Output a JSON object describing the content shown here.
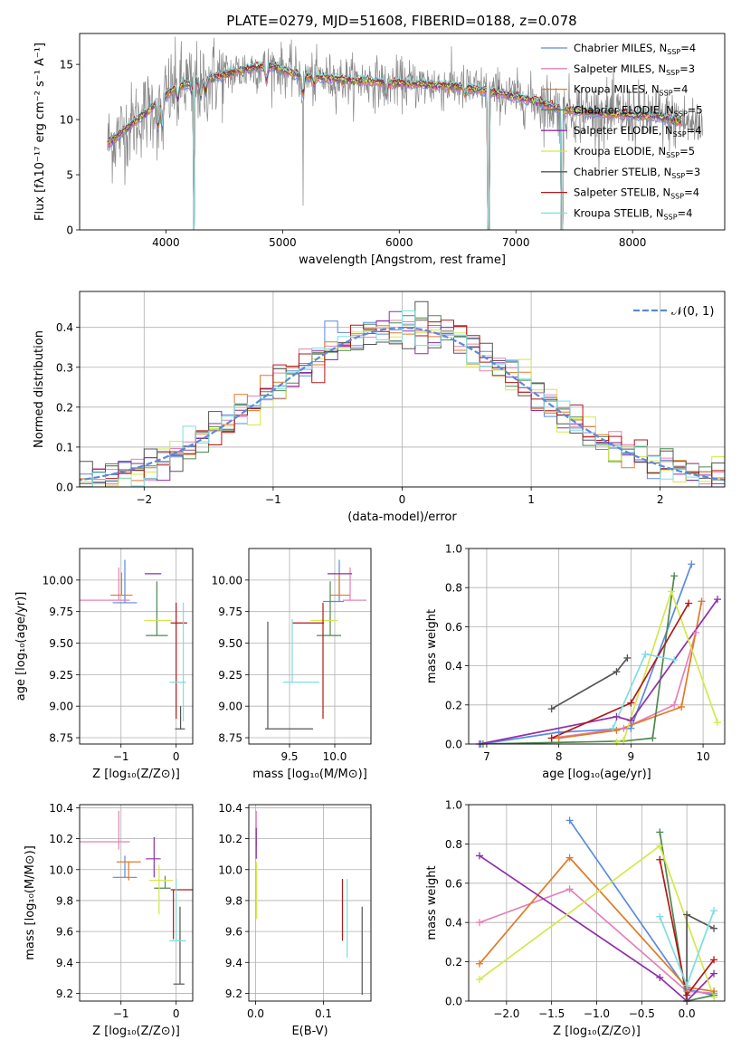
{
  "figure_title": "PLATE=0279, MJD=51608, FIBERID=0188, z=0.078",
  "colors": {
    "Chabrier MILES": "#5b8ae0",
    "Salpeter MILES": "#e680b8",
    "Kroupa MILES": "#e07a26",
    "Chabrier ELODIE": "#4e8750",
    "Salpeter ELODIE": "#8e2fa8",
    "Kroupa ELODIE": "#d4e84a",
    "Chabrier STELIB": "#555555",
    "Salpeter STELIB": "#b21818",
    "Kroupa STELIB": "#7fdde0",
    "data": "#888888",
    "normal": "#5b8ad8"
  },
  "chart_data": [
    {
      "id": "spectrum",
      "type": "line",
      "xlabel": "wavelength [Angstrom, rest frame]",
      "ylabel": "Flux [fλ10⁻¹⁷ erg cm⁻² s⁻¹ A⁻¹]",
      "xlim": [
        3260,
        8790
      ],
      "ylim": [
        0,
        17.8
      ],
      "xticks": [
        4000,
        5000,
        6000,
        7000,
        8000
      ],
      "yticks": [
        0,
        5,
        10,
        15
      ],
      "legend_position": "top-right",
      "legend": [
        {
          "name": "Chabrier MILES, N",
          "sub": "SSP",
          "tail": "=4"
        },
        {
          "name": "Salpeter MILES, N",
          "sub": "SSP",
          "tail": "=3"
        },
        {
          "name": "Kroupa MILES, N",
          "sub": "SSP",
          "tail": "=4"
        },
        {
          "name": "Chabrier ELODIE, N",
          "sub": "SSP",
          "tail": "=5"
        },
        {
          "name": "Salpeter ELODIE, N",
          "sub": "SSP",
          "tail": "=4"
        },
        {
          "name": "Kroupa ELODIE, N",
          "sub": "SSP",
          "tail": "=5"
        },
        {
          "name": "Chabrier STELIB, N",
          "sub": "SSP",
          "tail": "=3"
        },
        {
          "name": "Salpeter STELIB, N",
          "sub": "SSP",
          "tail": "=4"
        },
        {
          "name": "Kroupa STELIB, N",
          "sub": "SSP",
          "tail": "=4"
        }
      ],
      "continuum": [
        [
          3500,
          7.8
        ],
        [
          3700,
          9.5
        ],
        [
          3950,
          11.8
        ],
        [
          4100,
          13.0
        ],
        [
          4400,
          13.8
        ],
        [
          4700,
          14.6
        ],
        [
          4900,
          14.9
        ],
        [
          5150,
          14.0
        ],
        [
          5500,
          13.6
        ],
        [
          6000,
          13.3
        ],
        [
          6500,
          13.0
        ],
        [
          6850,
          12.4
        ],
        [
          7200,
          11.6
        ],
        [
          7400,
          10.9
        ],
        [
          7800,
          10.5
        ],
        [
          8200,
          10.3
        ],
        [
          8500,
          9.6
        ],
        [
          8600,
          9.5
        ]
      ],
      "features": [
        [
          3934,
          -2.5
        ],
        [
          3968,
          -2.8
        ],
        [
          4101,
          -1.2
        ],
        [
          4226,
          -1.0
        ],
        [
          4300,
          -1.5
        ],
        [
          4340,
          -1.2
        ],
        [
          4861,
          -1.2
        ],
        [
          5175,
          -1.8
        ],
        [
          5270,
          -0.8
        ],
        [
          5890,
          -1.2
        ],
        [
          6563,
          -0.6
        ],
        [
          7400,
          -1.0
        ]
      ],
      "spikes": [
        [
          4236,
          0
        ],
        [
          5177,
          2.2
        ],
        [
          6765,
          0
        ],
        [
          7395,
          0
        ]
      ],
      "gaps": [
        [
          4235,
          4240
        ],
        [
          6760,
          6770
        ],
        [
          7390,
          7400
        ]
      ],
      "data_range": [
        3500,
        8600
      ],
      "model_range": [
        3500,
        8420
      ]
    },
    {
      "id": "residuals",
      "type": "histogram",
      "xlabel": "(data-model)/error",
      "ylabel": "Normed distribution",
      "xlim": [
        -2.5,
        2.5
      ],
      "ylim": [
        0,
        0.49
      ],
      "xticks": [
        -2,
        -1,
        0,
        1,
        2
      ],
      "yticks": [
        0.0,
        0.1,
        0.2,
        0.3,
        0.4
      ],
      "grid": true,
      "bin_width": 0.1,
      "legend_position": "top-right",
      "legend": [
        {
          "name": "𝒩(0, 1)"
        }
      ]
    },
    {
      "id": "z-age",
      "type": "errorbar",
      "xlabel": "Z [log₁₀(Z/Z⊙)]",
      "ylabel": "age  [log₁₀(age/yr)]",
      "xlim": [
        -1.75,
        0.3
      ],
      "ylim": [
        8.7,
        10.25
      ],
      "xticks": [
        -1,
        0
      ],
      "yticks": [
        8.75,
        9.0,
        9.25,
        9.5,
        9.75,
        10.0
      ],
      "grid": true,
      "points": [
        {
          "m": "Chabrier MILES",
          "x": -0.93,
          "xe": [
            0.22,
            0.22
          ],
          "y": 9.82,
          "ye": [
            0.0,
            0.34
          ]
        },
        {
          "m": "Salpeter MILES",
          "x": -1.04,
          "xe": [
            0.72,
            0.2
          ],
          "y": 9.84,
          "ye": [
            0.0,
            0.26
          ]
        },
        {
          "m": "Kroupa MILES",
          "x": -0.99,
          "xe": [
            0.2,
            0.2
          ],
          "y": 9.88,
          "ye": [
            0.0,
            0.18
          ]
        },
        {
          "m": "Chabrier ELODIE",
          "x": -0.35,
          "xe": [
            0.2,
            0.2
          ],
          "y": 9.56,
          "ye": [
            0.0,
            0.43
          ]
        },
        {
          "m": "Salpeter ELODIE",
          "x": -0.42,
          "xe": [
            0.15,
            0.15
          ],
          "y": 10.05,
          "ye": [
            0.0,
            0.0
          ]
        },
        {
          "m": "Kroupa ELODIE",
          "x": -0.33,
          "xe": [
            0.25,
            0.25
          ],
          "y": 9.68,
          "ye": [
            0.0,
            0.0
          ]
        },
        {
          "m": "Chabrier STELIB",
          "x": 0.08,
          "xe": [
            0.1,
            0.08
          ],
          "y": 8.82,
          "ye": [
            0.0,
            0.18
          ]
        },
        {
          "m": "Salpeter STELIB",
          "x": 0.0,
          "xe": [
            0.1,
            0.2
          ],
          "y": 9.66,
          "ye": [
            0.76,
            0.16
          ]
        },
        {
          "m": "Kroupa STELIB",
          "x": 0.13,
          "xe": [
            0.25,
            0.05
          ],
          "y": 9.19,
          "ye": [
            0.31,
            0.63
          ]
        }
      ]
    },
    {
      "id": "mass-age",
      "type": "errorbar",
      "xlabel": "mass [log₁₀(M/M⊙)]",
      "ylabel": "",
      "xlim": [
        9.05,
        10.4
      ],
      "ylim": [
        8.7,
        10.25
      ],
      "xticks": [
        9.5,
        10.0
      ],
      "yticks": [
        8.75,
        9.0,
        9.25,
        9.5,
        9.75,
        10.0
      ],
      "grid": true,
      "points": [
        {
          "m": "Chabrier MILES",
          "x": 10.05,
          "xe": [
            0.18,
            0.05
          ],
          "y": 9.83,
          "ye": [
            0.0,
            0.33
          ]
        },
        {
          "m": "Salpeter MILES",
          "x": 10.17,
          "xe": [
            0.08,
            0.18
          ],
          "y": 9.84,
          "ye": [
            0.0,
            0.26
          ]
        },
        {
          "m": "Kroupa MILES",
          "x": 10.05,
          "xe": [
            0.1,
            0.12
          ],
          "y": 9.88,
          "ye": [
            0.0,
            0.18
          ]
        },
        {
          "m": "Chabrier ELODIE",
          "x": 9.95,
          "xe": [
            0.15,
            0.12
          ],
          "y": 9.56,
          "ye": [
            0.0,
            0.43
          ]
        },
        {
          "m": "Salpeter ELODIE",
          "x": 10.07,
          "xe": [
            0.15,
            0.12
          ],
          "y": 10.05,
          "ye": [
            0.0,
            0.0
          ]
        },
        {
          "m": "Kroupa ELODIE",
          "x": 9.93,
          "xe": [
            0.2,
            0.1
          ],
          "y": 9.68,
          "ye": [
            0.0,
            0.0
          ]
        },
        {
          "m": "Chabrier STELIB",
          "x": 9.26,
          "xe": [
            0.03,
            0.5
          ],
          "y": 8.82,
          "ye": [
            0.0,
            0.85
          ]
        },
        {
          "m": "Salpeter STELIB",
          "x": 9.87,
          "xe": [
            0.34,
            0.01
          ],
          "y": 9.66,
          "ye": [
            0.76,
            0.16
          ]
        },
        {
          "m": "Kroupa STELIB",
          "x": 9.53,
          "xe": [
            0.1,
            0.3
          ],
          "y": 9.19,
          "ye": [
            0.0,
            0.5
          ]
        }
      ]
    },
    {
      "id": "age-weight",
      "type": "line",
      "xlabel": "age  [log₁₀(age/yr)]",
      "ylabel": "mass weight",
      "xlim": [
        6.75,
        10.3
      ],
      "ylim": [
        0,
        1.0
      ],
      "xticks": [
        7,
        8,
        9,
        10
      ],
      "yticks": [
        0.0,
        0.2,
        0.4,
        0.6,
        0.8,
        1.0
      ],
      "grid": true,
      "series": [
        {
          "m": "Chabrier MILES",
          "x": [
            6.92,
            8.0,
            9.0,
            9.84
          ],
          "y": [
            0.0,
            0.06,
            0.08,
            0.92
          ]
        },
        {
          "m": "Salpeter MILES",
          "x": [
            7.9,
            8.9,
            9.6,
            9.9
          ],
          "y": [
            0.03,
            0.08,
            0.2,
            0.57
          ]
        },
        {
          "m": "Kroupa MILES",
          "x": [
            8.0,
            8.8,
            9.7,
            9.98
          ],
          "y": [
            0.03,
            0.07,
            0.19,
            0.73
          ]
        },
        {
          "m": "Chabrier ELODIE",
          "x": [
            6.95,
            8.9,
            9.3,
            9.6
          ],
          "y": [
            0.0,
            0.015,
            0.03,
            0.86
          ]
        },
        {
          "m": "Salpeter ELODIE",
          "x": [
            6.9,
            8.8,
            9.0,
            10.2
          ],
          "y": [
            0.0,
            0.14,
            0.12,
            0.74
          ]
        },
        {
          "m": "Kroupa ELODIE",
          "x": [
            8.8,
            8.9,
            9.56,
            10.2
          ],
          "y": [
            0.01,
            0.02,
            0.78,
            0.11
          ]
        },
        {
          "m": "Chabrier STELIB",
          "x": [
            7.9,
            8.8,
            8.95
          ],
          "y": [
            0.18,
            0.37,
            0.44
          ]
        },
        {
          "m": "Salpeter STELIB",
          "x": [
            7.9,
            9.0,
            9.8
          ],
          "y": [
            0.03,
            0.21,
            0.72
          ]
        },
        {
          "m": "Kroupa STELIB",
          "x": [
            8.75,
            9.2,
            9.6
          ],
          "y": [
            0.08,
            0.46,
            0.43
          ]
        }
      ]
    },
    {
      "id": "z-mass",
      "type": "errorbar",
      "xlabel": "Z [log₁₀(Z/Z⊙)]",
      "ylabel": "mass [log₁₀(M/M⊙)]",
      "xlim": [
        -1.75,
        0.3
      ],
      "ylim": [
        9.15,
        10.42
      ],
      "xticks": [
        -1,
        0
      ],
      "yticks": [
        9.2,
        9.4,
        9.6,
        9.8,
        10.0,
        10.2,
        10.4
      ],
      "grid": true,
      "points": [
        {
          "m": "Chabrier MILES",
          "x": -0.93,
          "xe": [
            0.22,
            0.22
          ],
          "y": 9.95,
          "ye": [
            0.0,
            0.14
          ]
        },
        {
          "m": "Salpeter MILES",
          "x": -1.04,
          "xe": [
            0.72,
            0.2
          ],
          "y": 10.18,
          "ye": [
            0.05,
            0.2
          ]
        },
        {
          "m": "Kroupa MILES",
          "x": -0.86,
          "xe": [
            0.22,
            0.22
          ],
          "y": 10.05,
          "ye": [
            0.12,
            0.0
          ]
        },
        {
          "m": "Chabrier ELODIE",
          "x": -0.2,
          "xe": [
            0.2,
            0.1
          ],
          "y": 9.88,
          "ye": [
            0.0,
            0.08
          ]
        },
        {
          "m": "Salpeter ELODIE",
          "x": -0.4,
          "xe": [
            0.15,
            0.12
          ],
          "y": 10.07,
          "ye": [
            0.12,
            0.14
          ]
        },
        {
          "m": "Kroupa ELODIE",
          "x": -0.31,
          "xe": [
            0.18,
            0.25
          ],
          "y": 9.93,
          "ye": [
            0.22,
            0.1
          ]
        },
        {
          "m": "Chabrier STELIB",
          "x": 0.07,
          "xe": [
            0.12,
            0.08
          ],
          "y": 9.26,
          "ye": [
            0.0,
            0.5
          ]
        },
        {
          "m": "Salpeter STELIB",
          "x": -0.05,
          "xe": [
            0.05,
            0.35
          ],
          "y": 9.87,
          "ye": [
            0.32,
            0.0
          ]
        },
        {
          "m": "Kroupa STELIB",
          "x": 0.0,
          "xe": [
            0.12,
            0.18
          ],
          "y": 9.54,
          "ye": [
            0.0,
            0.4
          ]
        }
      ]
    },
    {
      "id": "ebv-mass",
      "type": "errorbar",
      "xlabel": "E(B-V)",
      "ylabel": "",
      "xlim": [
        -0.01,
        0.17
      ],
      "ylim": [
        9.15,
        10.42
      ],
      "xticks": [
        0.0,
        0.1
      ],
      "yticks": [
        9.2,
        9.4,
        9.6,
        9.8,
        10.0,
        10.2,
        10.4
      ],
      "grid": true,
      "points": [
        {
          "m": "Salpeter MILES",
          "x": 0.001,
          "xe": [
            0,
            0
          ],
          "y": 10.2,
          "ye": [
            0.05,
            0.18
          ]
        },
        {
          "m": "Salpeter ELODIE",
          "x": 0.001,
          "xe": [
            0,
            0
          ],
          "y": 10.07,
          "ye": [
            0.0,
            0.2
          ]
        },
        {
          "m": "Kroupa ELODIE",
          "x": 0.0015,
          "xe": [
            0,
            0
          ],
          "y": 9.9,
          "ye": [
            0.22,
            0.15
          ]
        },
        {
          "m": "Salpeter STELIB",
          "x": 0.128,
          "xe": [
            0,
            0
          ],
          "y": 9.73,
          "ye": [
            0.19,
            0.21
          ]
        },
        {
          "m": "Kroupa STELIB",
          "x": 0.135,
          "xe": [
            0,
            0
          ],
          "y": 9.65,
          "ye": [
            0.22,
            0.29
          ]
        },
        {
          "m": "Chabrier STELIB",
          "x": 0.157,
          "xe": [
            0,
            0
          ],
          "y": 9.48,
          "ye": [
            0.29,
            0.28
          ]
        }
      ]
    },
    {
      "id": "z-weight",
      "type": "line",
      "xlabel": "Z [log₁₀(Z/Z⊙)]",
      "ylabel": "mass weight",
      "xlim": [
        -2.42,
        0.42
      ],
      "ylim": [
        0,
        1.0
      ],
      "xticks": [
        -2.0,
        -1.5,
        -1.0,
        -0.5,
        0.0
      ],
      "yticks": [
        0.0,
        0.2,
        0.4,
        0.6,
        0.8,
        1.0
      ],
      "grid": true,
      "series": [
        {
          "m": "Chabrier MILES",
          "x": [
            -1.3,
            0.0,
            0.3
          ],
          "y": [
            0.92,
            0.06,
            0.03
          ]
        },
        {
          "m": "Salpeter MILES",
          "x": [
            -2.3,
            -1.3,
            0.0,
            0.3
          ],
          "y": [
            0.4,
            0.57,
            0.05,
            0.04
          ]
        },
        {
          "m": "Kroupa MILES",
          "x": [
            -2.3,
            -1.3,
            0.0,
            0.3
          ],
          "y": [
            0.19,
            0.73,
            0.07,
            0.05
          ]
        },
        {
          "m": "Chabrier ELODIE",
          "x": [
            -0.3,
            0.0,
            0.3
          ],
          "y": [
            0.86,
            0.0,
            0.03
          ]
        },
        {
          "m": "Salpeter ELODIE",
          "x": [
            -2.3,
            -0.3,
            0.0,
            0.3
          ],
          "y": [
            0.74,
            0.12,
            0.0,
            0.14
          ]
        },
        {
          "m": "Kroupa ELODIE",
          "x": [
            -2.3,
            -0.3,
            0.3
          ],
          "y": [
            0.11,
            0.79,
            0.02
          ]
        },
        {
          "m": "Chabrier STELIB",
          "x": [
            0.0,
            0.0,
            0.3
          ],
          "y": [
            0.0,
            0.44,
            0.37
          ]
        },
        {
          "m": "Salpeter STELIB",
          "x": [
            -0.3,
            0.0,
            0.3
          ],
          "y": [
            0.72,
            0.03,
            0.21
          ]
        },
        {
          "m": "Kroupa STELIB",
          "x": [
            -0.3,
            0.0,
            0.3
          ],
          "y": [
            0.43,
            0.08,
            0.46
          ]
        }
      ]
    }
  ]
}
